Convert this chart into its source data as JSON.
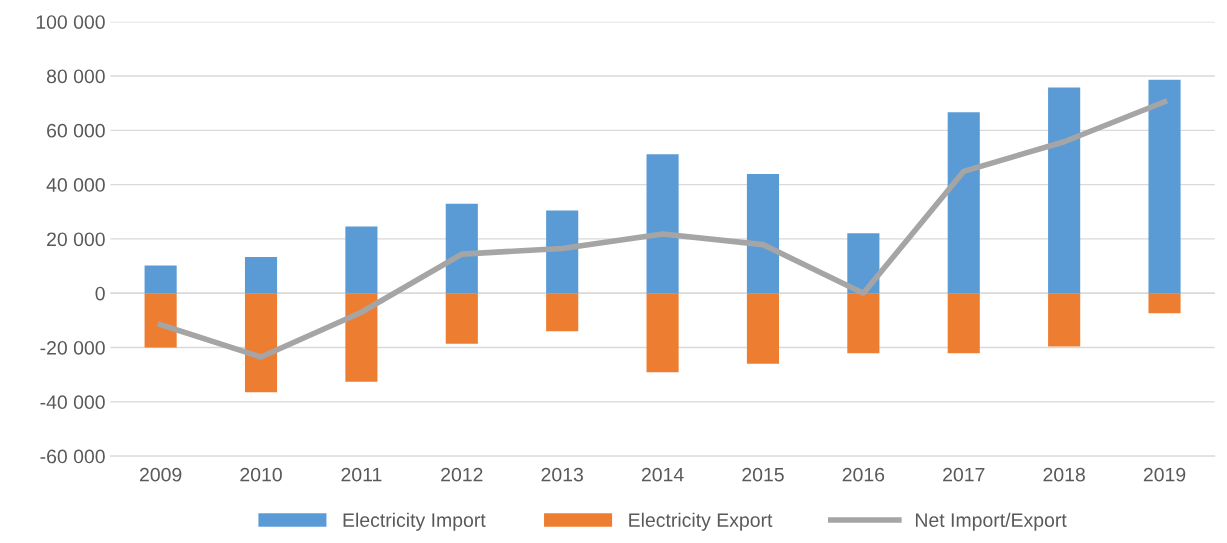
{
  "chart_data": {
    "type": "bar",
    "categories": [
      "2009",
      "2010",
      "2011",
      "2012",
      "2013",
      "2014",
      "2015",
      "2016",
      "2017",
      "2018",
      "2019"
    ],
    "series": [
      {
        "name": "Electricity Import",
        "color": "#5b9bd5",
        "values": [
          10200,
          13300,
          24600,
          33000,
          30500,
          51200,
          43900,
          22100,
          66700,
          75800,
          78600
        ]
      },
      {
        "name": "Electricity Export",
        "color": "#ed7d31",
        "values": [
          -20000,
          -36500,
          -32600,
          -18600,
          -14000,
          -29100,
          -26000,
          -22100,
          -22100,
          -19600,
          -7400
        ]
      },
      {
        "name": "Net Import/Export",
        "color": "#a5a5a5",
        "type": "line",
        "values": [
          -11600,
          -23500,
          -7000,
          14400,
          16500,
          21800,
          17900,
          0,
          44900,
          55800,
          70500
        ]
      }
    ],
    "ylim": [
      -60000,
      100000
    ],
    "stacked": true,
    "yticks": [
      {
        "value": -60000,
        "label": "-60 000"
      },
      {
        "value": -40000,
        "label": "-40 000"
      },
      {
        "value": -20000,
        "label": "-20 000"
      },
      {
        "value": 0,
        "label": "0"
      },
      {
        "value": 20000,
        "label": "20 000"
      },
      {
        "value": 40000,
        "label": "40 000"
      },
      {
        "value": 60000,
        "label": "60 000"
      },
      {
        "value": 80000,
        "label": "80 000"
      },
      {
        "value": 100000,
        "label": "100 000"
      }
    ],
    "grid": "y",
    "legend": "bottom",
    "marker": "none",
    "line_style": "solid"
  }
}
